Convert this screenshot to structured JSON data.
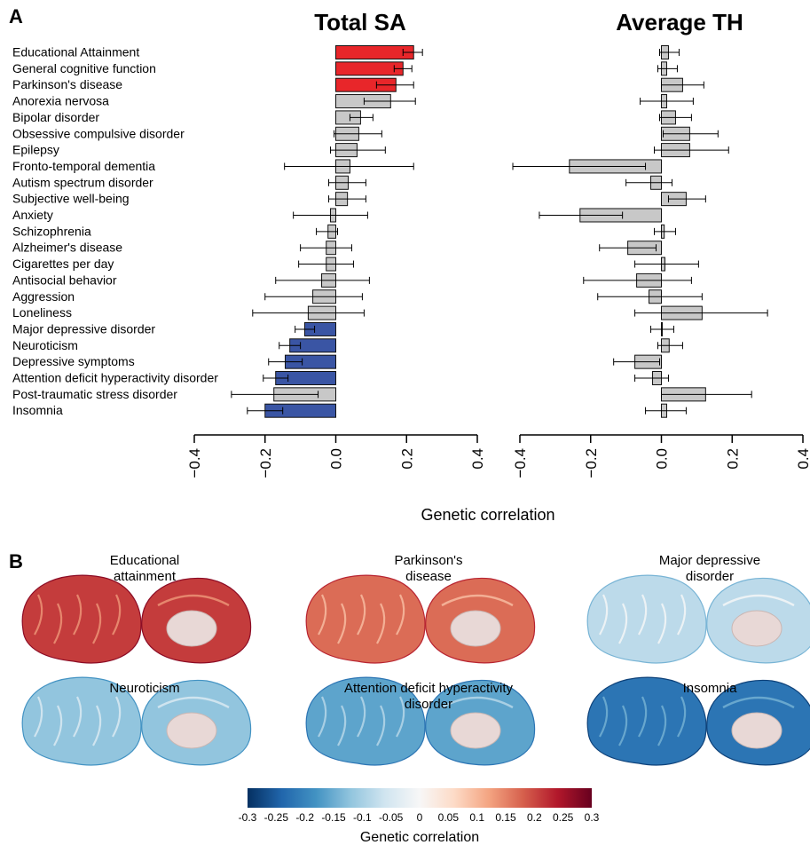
{
  "panel_a_letter": "A",
  "panel_b_letter": "B",
  "chart_data": [
    {
      "type": "bar",
      "orientation": "horizontal",
      "title": "Total SA",
      "xlabel": "Genetic correlation",
      "xlim": [
        -0.4,
        0.4
      ],
      "xticks": [
        "−0.4",
        "−0.2",
        "0.0",
        "0.2",
        "0.4"
      ],
      "categories": [
        "Educational Attainment",
        "General cognitive function",
        "Parkinson's disease",
        "Anorexia nervosa",
        "Bipolar disorder",
        "Obsessive compulsive disorder",
        "Epilepsy",
        "Fronto-temporal dementia",
        "Autism spectrum disorder",
        "Subjective well-being",
        "Anxiety",
        "Schizophrenia",
        "Alzheimer's disease",
        "Cigarettes per day",
        "Antisocial behavior",
        "Aggression",
        "Loneliness",
        "Major depressive disorder",
        "Neuroticism",
        "Depressive symptoms",
        "Attention deficit hyperactivity disorder",
        "Post-traumatic stress disorder",
        "Insomnia"
      ],
      "values": [
        0.22,
        0.19,
        0.17,
        0.155,
        0.07,
        0.065,
        0.06,
        0.04,
        0.035,
        0.033,
        -0.015,
        -0.022,
        -0.027,
        -0.027,
        -0.04,
        -0.065,
        -0.078,
        -0.088,
        -0.13,
        -0.143,
        -0.17,
        -0.175,
        -0.2
      ],
      "err_low": [
        0.19,
        0.165,
        0.115,
        0.08,
        0.04,
        -0.005,
        -0.015,
        -0.145,
        -0.02,
        -0.02,
        -0.12,
        -0.055,
        -0.1,
        -0.105,
        -0.17,
        -0.2,
        -0.235,
        -0.115,
        -0.16,
        -0.19,
        -0.205,
        -0.295,
        -0.25
      ],
      "err_high": [
        0.245,
        0.215,
        0.22,
        0.225,
        0.105,
        0.13,
        0.14,
        0.22,
        0.085,
        0.085,
        0.09,
        0.005,
        0.045,
        0.05,
        0.095,
        0.075,
        0.08,
        -0.06,
        -0.1,
        -0.095,
        -0.135,
        -0.05,
        -0.15
      ],
      "colors": [
        "red",
        "red",
        "red",
        "grey",
        "grey",
        "grey",
        "grey",
        "grey",
        "grey",
        "grey",
        "grey",
        "grey",
        "grey",
        "grey",
        "grey",
        "grey",
        "grey",
        "blue",
        "blue",
        "blue",
        "blue",
        "grey",
        "blue"
      ]
    },
    {
      "type": "bar",
      "orientation": "horizontal",
      "title": "Average TH",
      "xlabel": "Genetic correlation",
      "xlim": [
        -0.4,
        0.4
      ],
      "xticks": [
        "−0.4",
        "−0.2",
        "0.0",
        "0.2",
        "0.4"
      ],
      "categories": [
        "Educational Attainment",
        "General cognitive function",
        "Parkinson's disease",
        "Anorexia nervosa",
        "Bipolar disorder",
        "Obsessive compulsive disorder",
        "Epilepsy",
        "Fronto-temporal dementia",
        "Autism spectrum disorder",
        "Subjective well-being",
        "Anxiety",
        "Schizophrenia",
        "Alzheimer's disease",
        "Cigarettes per day",
        "Antisocial behavior",
        "Aggression",
        "Loneliness",
        "Major depressive disorder",
        "Neuroticism",
        "Depressive symptoms",
        "Attention deficit hyperactivity disorder",
        "Post-traumatic stress disorder",
        "Insomnia"
      ],
      "values": [
        0.02,
        0.015,
        0.06,
        0.015,
        0.04,
        0.08,
        0.08,
        -0.26,
        -0.03,
        0.07,
        -0.23,
        0.008,
        -0.095,
        0.01,
        -0.07,
        -0.035,
        0.115,
        0.002,
        0.022,
        -0.075,
        -0.025,
        0.125,
        0.015
      ],
      "err_low": [
        -0.005,
        -0.01,
        0.0,
        -0.06,
        -0.005,
        0.005,
        -0.02,
        -0.42,
        -0.1,
        0.02,
        -0.345,
        -0.02,
        -0.175,
        -0.075,
        -0.22,
        -0.18,
        -0.075,
        -0.03,
        -0.01,
        -0.135,
        -0.075,
        0.0,
        -0.045
      ],
      "err_high": [
        0.05,
        0.045,
        0.12,
        0.09,
        0.085,
        0.16,
        0.19,
        -0.045,
        0.03,
        0.125,
        -0.11,
        0.04,
        -0.015,
        0.105,
        0.085,
        0.115,
        0.3,
        0.035,
        0.06,
        -0.005,
        0.02,
        0.255,
        0.07
      ],
      "colors": [
        "grey",
        "grey",
        "grey",
        "grey",
        "grey",
        "grey",
        "grey",
        "grey",
        "grey",
        "grey",
        "grey",
        "grey",
        "grey",
        "grey",
        "grey",
        "grey",
        "grey",
        "grey",
        "grey",
        "grey",
        "grey",
        "grey",
        "grey"
      ]
    }
  ],
  "palette": {
    "red": "#e8262a",
    "blue": "#3a55a4",
    "grey": "#c8c8c8",
    "outline": "#111111"
  },
  "brains": [
    {
      "title_lines": [
        "Educational",
        "attainment"
      ],
      "mean_r": 0.21
    },
    {
      "title_lines": [
        "Parkinson's",
        "disease"
      ],
      "mean_r": 0.17
    },
    {
      "title_lines": [
        "Major depressive",
        "disorder"
      ],
      "mean_r": -0.08
    },
    {
      "title_lines": [
        "Neuroticism"
      ],
      "mean_r": -0.12
    },
    {
      "title_lines": [
        "Attention deficit hyperactivity",
        "disorder"
      ],
      "mean_r": -0.16
    },
    {
      "title_lines": [
        "Insomnia"
      ],
      "mean_r": -0.22
    }
  ],
  "colorbar": {
    "min": -0.3,
    "max": 0.3,
    "tick_labels": [
      "-0.3",
      "-0.25",
      "-0.2",
      "-0.15",
      "-0.1",
      "-0.05",
      "0",
      "0.05",
      "0.1",
      "0.15",
      "0.2",
      "0.25",
      "0.3"
    ],
    "label": "Genetic correlation",
    "stops": [
      "#053061",
      "#2166ac",
      "#4393c3",
      "#92c5de",
      "#d1e5f0",
      "#f7f7f7",
      "#fddbc7",
      "#f4a582",
      "#d6604d",
      "#b2182b",
      "#67001f"
    ]
  }
}
